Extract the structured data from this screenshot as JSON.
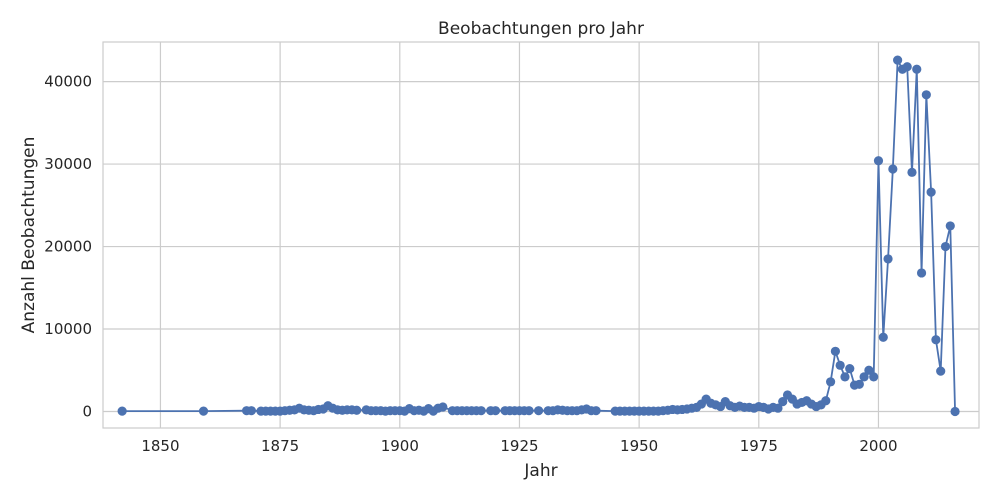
{
  "chart_data": {
    "type": "line",
    "title": "Beobachtungen pro Jahr",
    "xlabel": "Jahr",
    "ylabel": "Anzahl Beobachtungen",
    "xlim": [
      1838,
      2021
    ],
    "ylim": [
      -2000,
      44800
    ],
    "xticks": [
      1850,
      1875,
      1900,
      1925,
      1950,
      1975,
      2000
    ],
    "yticks": [
      0,
      10000,
      20000,
      30000,
      40000
    ],
    "grid": true,
    "legend": "none",
    "marker": "circle",
    "color": "#4c72b0",
    "series": [
      {
        "x": [
          1842,
          1859,
          1868,
          1869,
          1871,
          1872,
          1873,
          1874,
          1875,
          1876,
          1877,
          1878,
          1879,
          1880,
          1881,
          1882,
          1883,
          1884,
          1885,
          1886,
          1887,
          1888,
          1889,
          1890,
          1891,
          1893,
          1894,
          1895,
          1896,
          1897,
          1898,
          1899,
          1900,
          1901,
          1902,
          1903,
          1904,
          1905,
          1906,
          1907,
          1908,
          1909,
          1911,
          1912,
          1913,
          1914,
          1915,
          1916,
          1917,
          1919,
          1920,
          1922,
          1923,
          1924,
          1925,
          1926,
          1927,
          1929,
          1931,
          1932,
          1933,
          1934,
          1935,
          1936,
          1937,
          1938,
          1939,
          1940,
          1941,
          1945,
          1946,
          1947,
          1948,
          1949,
          1950,
          1951,
          1952,
          1953,
          1954,
          1955,
          1956,
          1957,
          1958,
          1959,
          1960,
          1961,
          1962,
          1963,
          1964,
          1965,
          1966,
          1967,
          1968,
          1969,
          1970,
          1971,
          1972,
          1973,
          1974,
          1975,
          1976,
          1977,
          1978,
          1979,
          1980,
          1981,
          1982,
          1983,
          1984,
          1985,
          1986,
          1987,
          1988,
          1989,
          1990,
          1991,
          1992,
          1993,
          1994,
          1995,
          1996,
          1997,
          1998,
          1999,
          2000,
          2001,
          2002,
          2003,
          2004,
          2005,
          2006,
          2007,
          2008,
          2009,
          2010,
          2011,
          2012,
          2013,
          2014,
          2015,
          2016
        ],
        "y": [
          50,
          50,
          100,
          100,
          50,
          50,
          50,
          50,
          50,
          100,
          150,
          200,
          400,
          200,
          150,
          100,
          250,
          300,
          700,
          400,
          200,
          150,
          200,
          200,
          150,
          200,
          100,
          100,
          100,
          50,
          100,
          100,
          100,
          50,
          350,
          100,
          150,
          50,
          350,
          50,
          400,
          550,
          100,
          100,
          100,
          100,
          100,
          100,
          100,
          100,
          100,
          100,
          100,
          100,
          100,
          100,
          100,
          100,
          100,
          100,
          200,
          150,
          100,
          100,
          100,
          200,
          300,
          100,
          100,
          50,
          50,
          50,
          50,
          50,
          50,
          50,
          50,
          50,
          50,
          100,
          150,
          250,
          200,
          250,
          300,
          400,
          500,
          900,
          1500,
          1000,
          800,
          600,
          1200,
          700,
          500,
          650,
          500,
          500,
          400,
          600,
          500,
          300,
          500,
          400,
          1200,
          2000,
          1500,
          900,
          1100,
          1300,
          900,
          600,
          800,
          1300,
          3600,
          7300,
          5600,
          4200,
          5200,
          3200,
          3300,
          4200,
          5000,
          4200,
          30400,
          9000,
          18500,
          29400,
          42600,
          41500,
          41800,
          29000,
          41500,
          16800,
          38400,
          26600,
          8700,
          4900,
          20000,
          22500,
          0
        ]
      }
    ]
  }
}
